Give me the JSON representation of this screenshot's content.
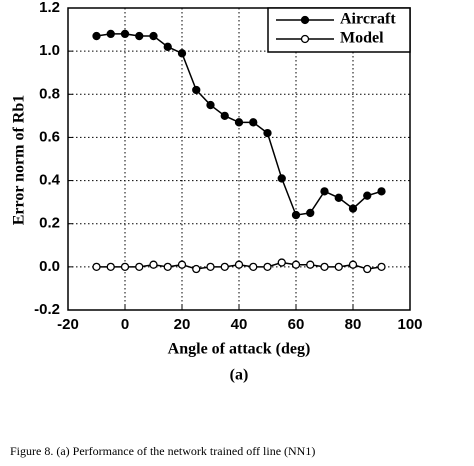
{
  "chart_data": {
    "type": "line",
    "xlabel": "Angle of attack (deg)",
    "ylabel": "Error norm of Rb1",
    "panel": "(a)",
    "caption": "Figure 8. (a) Performance of the network trained off line (NN1)",
    "x": [
      -10,
      -5,
      0,
      5,
      10,
      15,
      20,
      25,
      30,
      35,
      40,
      45,
      50,
      55,
      60,
      65,
      70,
      75,
      80,
      85,
      90
    ],
    "series": [
      {
        "name": "Aircraft",
        "color": "#000000",
        "marker": "filled",
        "values": [
          1.07,
          1.08,
          1.08,
          1.07,
          1.07,
          1.02,
          0.99,
          0.82,
          0.75,
          0.7,
          0.67,
          0.67,
          0.62,
          0.41,
          0.24,
          0.25,
          0.35,
          0.32,
          0.27,
          0.33,
          0.35
        ]
      },
      {
        "name": "Model",
        "color": "#000000",
        "marker": "open",
        "values": [
          0.0,
          0.0,
          0.0,
          0.0,
          0.01,
          0.0,
          0.01,
          -0.01,
          0.0,
          0.0,
          0.01,
          0.0,
          0.0,
          0.02,
          0.01,
          0.01,
          0.0,
          0.0,
          0.01,
          -0.01,
          0.0
        ]
      }
    ],
    "xlim": [
      -20,
      100
    ],
    "xticks": [
      -20,
      0,
      20,
      40,
      60,
      80,
      100
    ],
    "ylim": [
      -0.2,
      1.2
    ],
    "yticks": [
      {
        "value": -0.2,
        "label": "-0.2"
      },
      {
        "value": 0,
        "label": "0.0"
      },
      0.2,
      0.4,
      0.6,
      0.8,
      {
        "value": 1,
        "label": "1.0"
      },
      1.2
    ],
    "grid": true,
    "legend": "upper right"
  }
}
